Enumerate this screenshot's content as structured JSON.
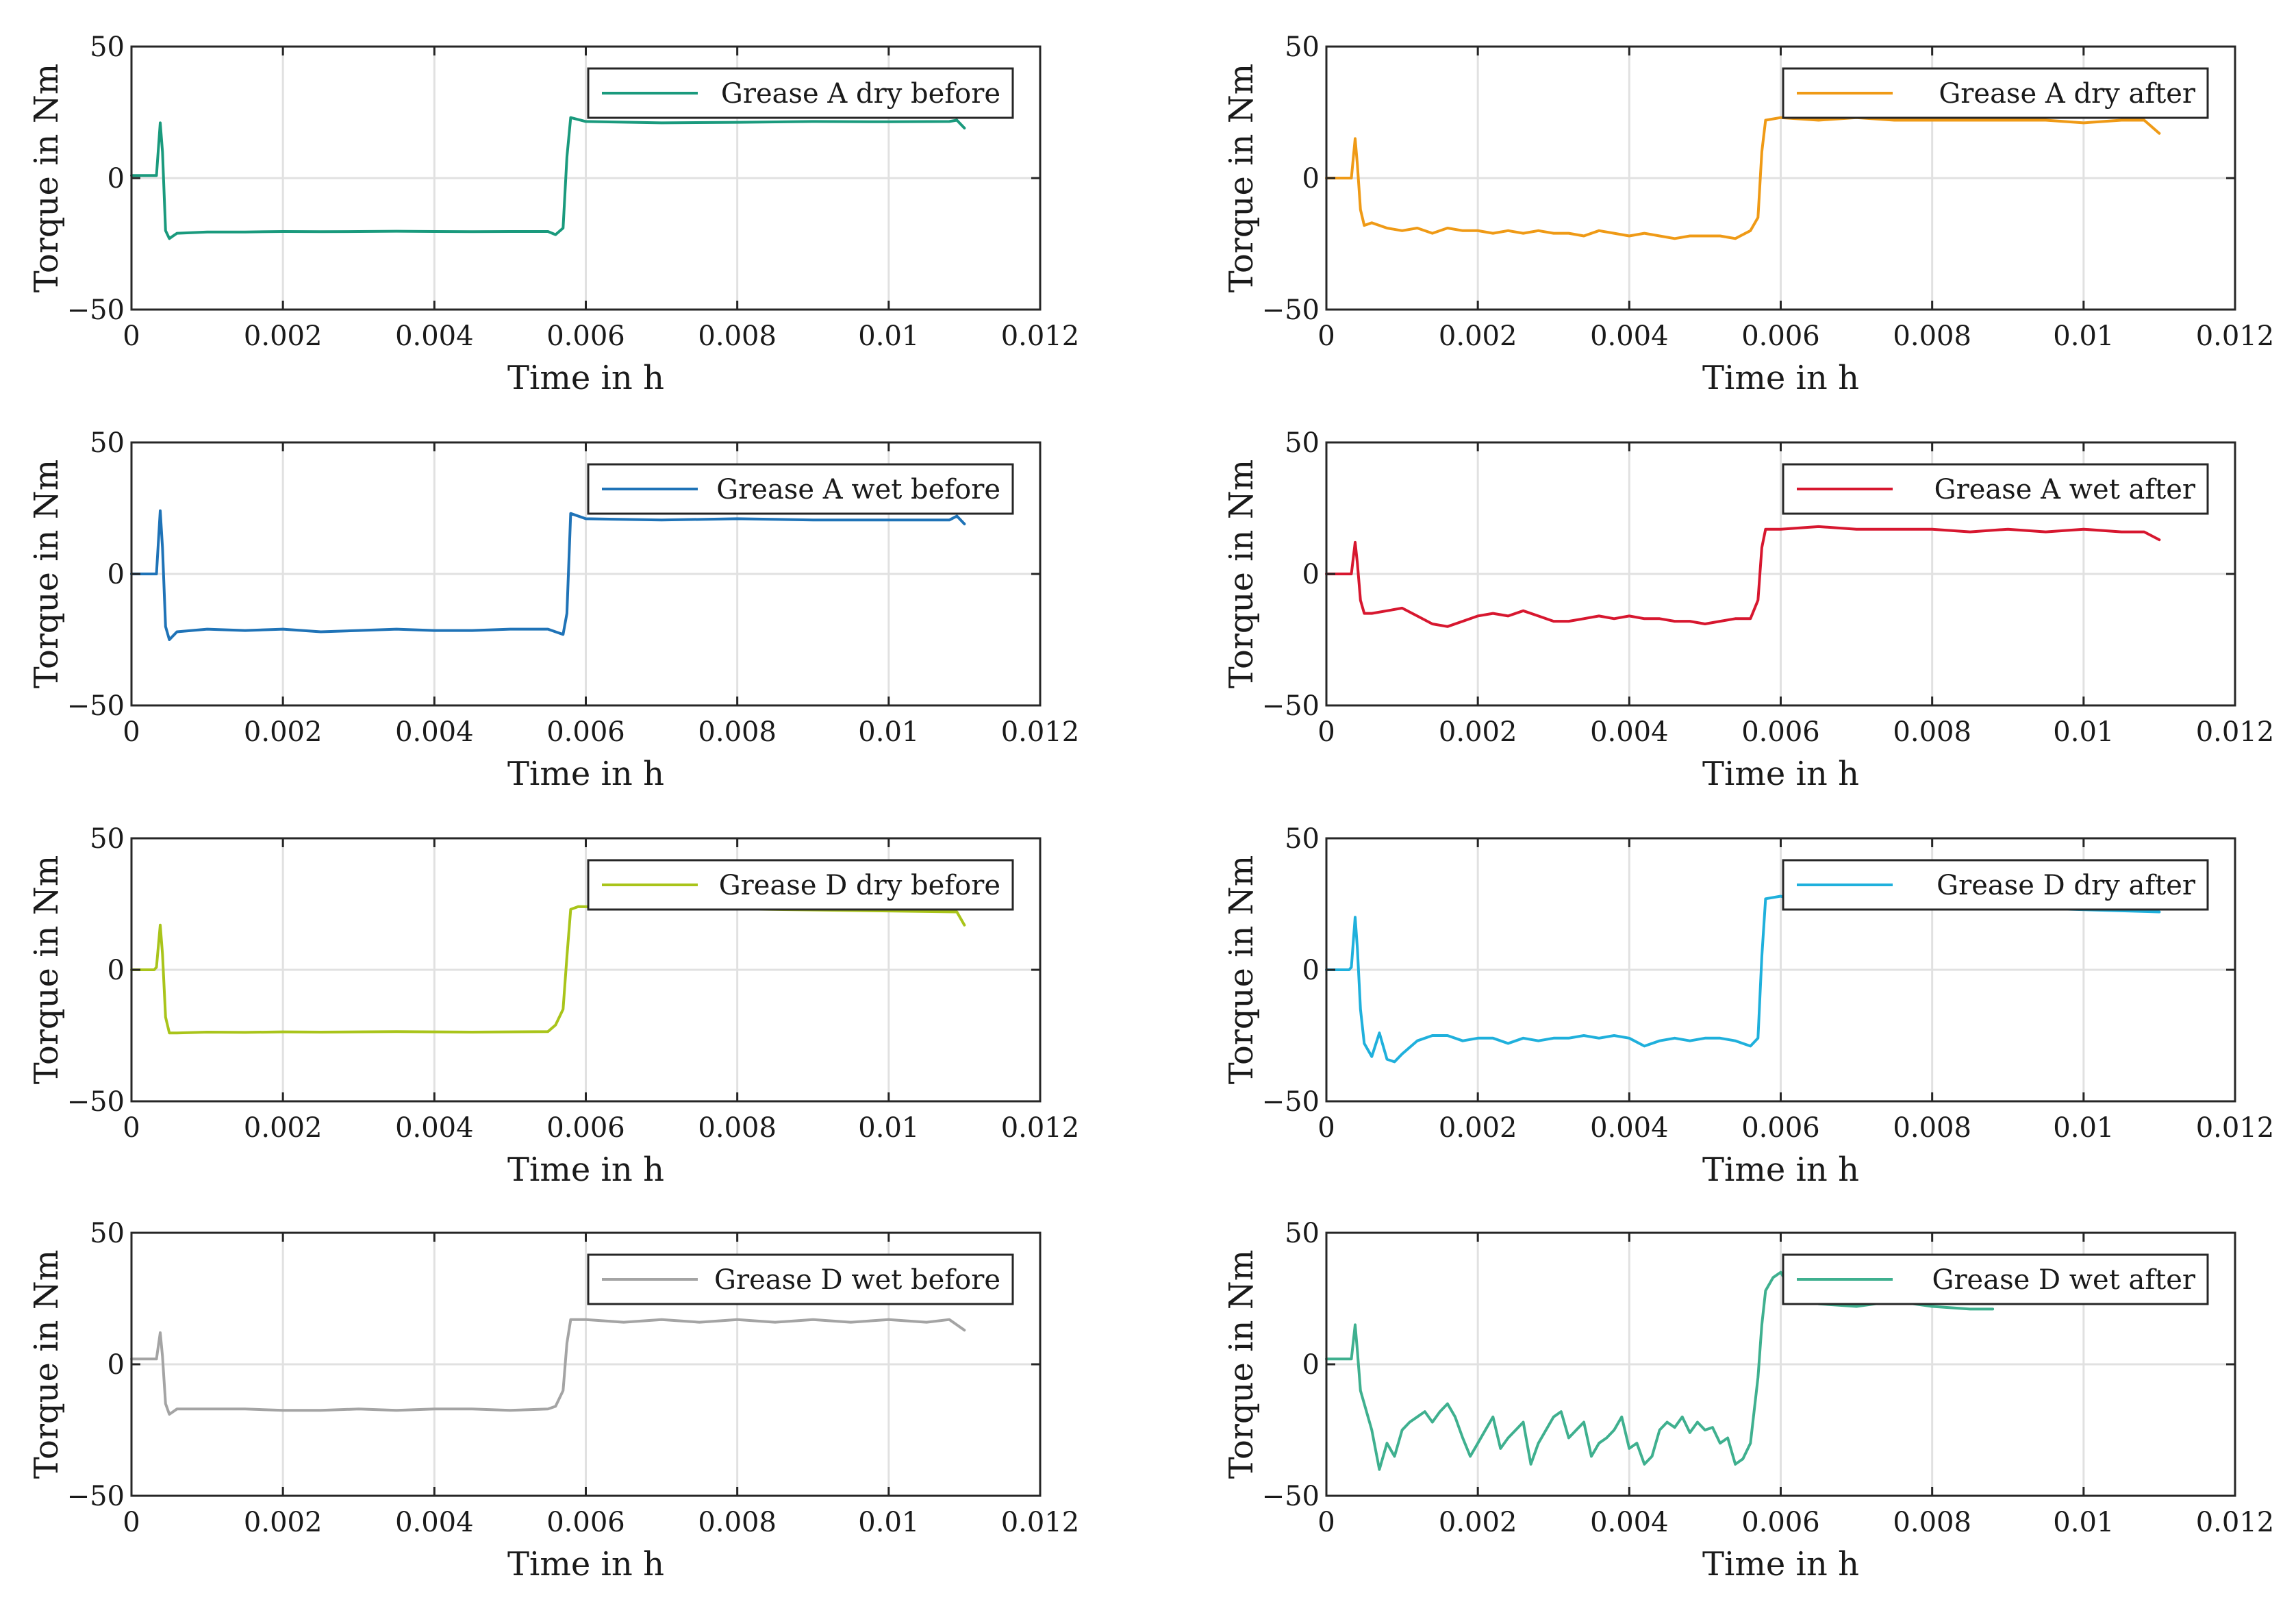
{
  "chart_data": [
    {
      "type": "line",
      "series": [
        {
          "name": "Grease A dry before",
          "color": "#1a9a7d",
          "x": [
            0,
            0.0003,
            0.00033,
            0.00038,
            0.00041,
            0.00045,
            0.0005,
            0.0006,
            0.001,
            0.0015,
            0.002,
            0.0025,
            0.003,
            0.0035,
            0.004,
            0.0045,
            0.005,
            0.0055,
            0.0056,
            0.0057,
            0.00575,
            0.0058,
            0.006,
            0.007,
            0.008,
            0.009,
            0.01,
            0.0108,
            0.0109,
            0.011
          ],
          "y": [
            1,
            1,
            1,
            21,
            10,
            -20,
            -23,
            -21,
            -20.5,
            -20.5,
            -20.3,
            -20.4,
            -20.3,
            -20.2,
            -20.3,
            -20.4,
            -20.3,
            -20.3,
            -21.5,
            -19,
            8,
            23,
            21.5,
            21,
            21.2,
            21.5,
            21.4,
            21.5,
            22,
            19
          ]
        }
      ],
      "title": "",
      "xlabel": "Time in h",
      "ylabel": "Torque in Nm",
      "xlim": [
        0,
        0.012
      ],
      "ylim": [
        -50,
        50
      ],
      "xticks": [
        "0",
        "0.002",
        "0.004",
        "0.006",
        "0.008",
        "0.01",
        "0.012"
      ],
      "yticks": [
        "-50",
        "0",
        "50"
      ],
      "grid": true,
      "legend_position": "top-right"
    },
    {
      "type": "line",
      "series": [
        {
          "name": "Grease A dry after",
          "color": "#ef9a16",
          "x": [
            0,
            0.0003,
            0.00033,
            0.00038,
            0.00041,
            0.00045,
            0.0005,
            0.0006,
            0.0008,
            0.001,
            0.0012,
            0.0014,
            0.0016,
            0.0018,
            0.002,
            0.0022,
            0.0024,
            0.0026,
            0.0028,
            0.003,
            0.0032,
            0.0034,
            0.0036,
            0.0038,
            0.004,
            0.0042,
            0.0044,
            0.0046,
            0.0048,
            0.005,
            0.0052,
            0.0054,
            0.0056,
            0.0057,
            0.00575,
            0.0058,
            0.006,
            0.0065,
            0.007,
            0.0075,
            0.008,
            0.0085,
            0.009,
            0.0095,
            0.01,
            0.0105,
            0.0108,
            0.011
          ],
          "y": [
            0,
            0,
            0,
            15,
            5,
            -12,
            -18,
            -17,
            -19,
            -20,
            -19,
            -21,
            -19,
            -20,
            -20,
            -21,
            -20,
            -21,
            -20,
            -21,
            -21,
            -22,
            -20,
            -21,
            -22,
            -21,
            -22,
            -23,
            -22,
            -22,
            -22,
            -23,
            -20,
            -15,
            10,
            22,
            23,
            22,
            23,
            22,
            22,
            22,
            22,
            22,
            21,
            22,
            22,
            17
          ]
        }
      ],
      "title": "",
      "xlabel": "Time in h",
      "ylabel": "Torque in Nm",
      "xlim": [
        0,
        0.012
      ],
      "ylim": [
        -50,
        50
      ],
      "xticks": [
        "0",
        "0.002",
        "0.004",
        "0.006",
        "0.008",
        "0.01",
        "0.012"
      ],
      "yticks": [
        "-50",
        "0",
        "50"
      ],
      "grid": true,
      "legend_position": "top-right"
    },
    {
      "type": "line",
      "series": [
        {
          "name": "Grease A wet before",
          "color": "#1f73b7",
          "x": [
            0,
            0.0003,
            0.00033,
            0.00038,
            0.00041,
            0.00045,
            0.0005,
            0.0006,
            0.001,
            0.0015,
            0.002,
            0.0025,
            0.003,
            0.0035,
            0.004,
            0.0045,
            0.005,
            0.0055,
            0.0056,
            0.0057,
            0.00575,
            0.0058,
            0.006,
            0.007,
            0.008,
            0.009,
            0.01,
            0.0108,
            0.0109,
            0.011
          ],
          "y": [
            0,
            0,
            0,
            24,
            10,
            -20,
            -25,
            -22,
            -21,
            -21.5,
            -21,
            -22,
            -21.5,
            -21,
            -21.5,
            -21.5,
            -21,
            -21,
            -22,
            -23,
            -15,
            23,
            21,
            20.5,
            21,
            20.5,
            20.5,
            20.5,
            22,
            19
          ]
        }
      ],
      "title": "",
      "xlabel": "Time in h",
      "ylabel": "Torque in Nm",
      "xlim": [
        0,
        0.012
      ],
      "ylim": [
        -50,
        50
      ],
      "xticks": [
        "0",
        "0.002",
        "0.004",
        "0.006",
        "0.008",
        "0.01",
        "0.012"
      ],
      "yticks": [
        "-50",
        "0",
        "50"
      ],
      "grid": true,
      "legend_position": "top-right"
    },
    {
      "type": "line",
      "series": [
        {
          "name": "Grease A wet after",
          "color": "#d7172f",
          "x": [
            0,
            0.0003,
            0.00033,
            0.00038,
            0.00041,
            0.00045,
            0.0005,
            0.0006,
            0.0008,
            0.001,
            0.0012,
            0.0014,
            0.0016,
            0.0018,
            0.002,
            0.0022,
            0.0024,
            0.0026,
            0.0028,
            0.003,
            0.0032,
            0.0034,
            0.0036,
            0.0038,
            0.004,
            0.0042,
            0.0044,
            0.0046,
            0.0048,
            0.005,
            0.0052,
            0.0054,
            0.0056,
            0.0057,
            0.00575,
            0.0058,
            0.006,
            0.0065,
            0.007,
            0.0075,
            0.008,
            0.0085,
            0.009,
            0.0095,
            0.01,
            0.0105,
            0.0108,
            0.011
          ],
          "y": [
            0,
            0,
            0,
            12,
            4,
            -10,
            -15,
            -15,
            -14,
            -13,
            -16,
            -19,
            -20,
            -18,
            -16,
            -15,
            -16,
            -14,
            -16,
            -18,
            -18,
            -17,
            -16,
            -17,
            -16,
            -17,
            -17,
            -18,
            -18,
            -19,
            -18,
            -17,
            -17,
            -10,
            10,
            17,
            17,
            18,
            17,
            17,
            17,
            16,
            17,
            16,
            17,
            16,
            16,
            13
          ]
        }
      ],
      "title": "",
      "xlabel": "Time in h",
      "ylabel": "Torque in Nm",
      "xlim": [
        0,
        0.012
      ],
      "ylim": [
        -50,
        50
      ],
      "xticks": [
        "0",
        "0.002",
        "0.004",
        "0.006",
        "0.008",
        "0.01",
        "0.012"
      ],
      "yticks": [
        "-50",
        "0",
        "50"
      ],
      "grid": true,
      "legend_position": "top-right"
    },
    {
      "type": "line",
      "series": [
        {
          "name": "Grease D dry before",
          "color": "#a9c41a",
          "x": [
            0,
            0.0003,
            0.00033,
            0.00038,
            0.00041,
            0.00045,
            0.0005,
            0.0006,
            0.001,
            0.0015,
            0.002,
            0.0025,
            0.003,
            0.0035,
            0.004,
            0.0045,
            0.005,
            0.0055,
            0.0056,
            0.0057,
            0.00575,
            0.0058,
            0.0059,
            0.0109,
            0.011
          ],
          "y": [
            0,
            0,
            1,
            17,
            6,
            -18,
            -24,
            -24,
            -23.7,
            -23.8,
            -23.6,
            -23.7,
            -23.6,
            -23.5,
            -23.6,
            -23.7,
            -23.6,
            -23.5,
            -21,
            -15,
            5,
            23,
            24,
            22,
            17
          ]
        }
      ],
      "title": "",
      "xlabel": "Time in h",
      "ylabel": "Torque in Nm",
      "xlim": [
        0,
        0.012
      ],
      "ylim": [
        -50,
        50
      ],
      "xticks": [
        "0",
        "0.002",
        "0.004",
        "0.006",
        "0.008",
        "0.01",
        "0.012"
      ],
      "yticks": [
        "-50",
        "0",
        "50"
      ],
      "grid": true,
      "legend_position": "top-right"
    },
    {
      "type": "line",
      "series": [
        {
          "name": "Grease D dry after",
          "color": "#1fb0dc",
          "x": [
            0,
            0.0003,
            0.00033,
            0.00038,
            0.00041,
            0.00045,
            0.0005,
            0.0006,
            0.0007,
            0.0008,
            0.0009,
            0.001,
            0.0012,
            0.0014,
            0.0016,
            0.0018,
            0.002,
            0.0022,
            0.0024,
            0.0026,
            0.0028,
            0.003,
            0.0032,
            0.0034,
            0.0036,
            0.0038,
            0.004,
            0.0042,
            0.0044,
            0.0046,
            0.0048,
            0.005,
            0.0052,
            0.0054,
            0.0056,
            0.0057,
            0.00575,
            0.0058,
            0.006,
            0.0062,
            0.0063,
            0.011
          ],
          "y": [
            0,
            0,
            1,
            20,
            8,
            -15,
            -28,
            -33,
            -24,
            -34,
            -35,
            -32,
            -27,
            -25,
            -25,
            -27,
            -26,
            -26,
            -28,
            -26,
            -27,
            -26,
            -26,
            -25,
            -26,
            -25,
            -26,
            -29,
            -27,
            -26,
            -27,
            -26,
            -26,
            -27,
            -29,
            -26,
            5,
            27,
            28,
            26,
            26,
            22
          ]
        }
      ],
      "title": "",
      "xlabel": "Time in h",
      "ylabel": "Torque in Nm",
      "xlim": [
        0,
        0.012
      ],
      "ylim": [
        -50,
        50
      ],
      "xticks": [
        "0",
        "0.002",
        "0.004",
        "0.006",
        "0.008",
        "0.01",
        "0.012"
      ],
      "yticks": [
        "-50",
        "0",
        "50"
      ],
      "grid": true,
      "legend_position": "top-right"
    },
    {
      "type": "line",
      "series": [
        {
          "name": "Grease D wet before",
          "color": "#a4a4a4",
          "x": [
            0,
            0.0003,
            0.00033,
            0.00038,
            0.00041,
            0.00045,
            0.0005,
            0.0006,
            0.001,
            0.0015,
            0.002,
            0.0025,
            0.003,
            0.0035,
            0.004,
            0.0045,
            0.005,
            0.0055,
            0.0056,
            0.0057,
            0.00575,
            0.0058,
            0.006,
            0.0065,
            0.007,
            0.0075,
            0.008,
            0.0085,
            0.009,
            0.0095,
            0.01,
            0.0105,
            0.0108,
            0.011
          ],
          "y": [
            2,
            2,
            2,
            12,
            3,
            -15,
            -19,
            -17,
            -17,
            -17,
            -17.5,
            -17.5,
            -17,
            -17.5,
            -17,
            -17,
            -17.5,
            -17,
            -16,
            -10,
            8,
            17,
            17,
            16,
            17,
            16,
            17,
            16,
            17,
            16,
            17,
            16,
            17,
            13
          ]
        }
      ],
      "title": "",
      "xlabel": "Time in h",
      "ylabel": "Torque in Nm",
      "xlim": [
        0,
        0.012
      ],
      "ylim": [
        -50,
        50
      ],
      "xticks": [
        "0",
        "0.002",
        "0.004",
        "0.006",
        "0.008",
        "0.01",
        "0.012"
      ],
      "yticks": [
        "-50",
        "0",
        "50"
      ],
      "grid": true,
      "legend_position": "top-right"
    },
    {
      "type": "line",
      "series": [
        {
          "name": "Grease D wet after",
          "color": "#3fb08f",
          "x": [
            0,
            0.0003,
            0.00033,
            0.00038,
            0.00041,
            0.00045,
            0.0005,
            0.0006,
            0.0007,
            0.0008,
            0.0009,
            0.001,
            0.0011,
            0.0012,
            0.0013,
            0.0014,
            0.0015,
            0.0016,
            0.0017,
            0.0018,
            0.0019,
            0.002,
            0.0021,
            0.0022,
            0.0023,
            0.0024,
            0.0025,
            0.0026,
            0.0027,
            0.0028,
            0.0029,
            0.003,
            0.0031,
            0.0032,
            0.0033,
            0.0034,
            0.0035,
            0.0036,
            0.0037,
            0.0038,
            0.0039,
            0.004,
            0.0041,
            0.0042,
            0.0043,
            0.0044,
            0.0045,
            0.0046,
            0.0047,
            0.0048,
            0.0049,
            0.005,
            0.0051,
            0.0052,
            0.0053,
            0.0054,
            0.0055,
            0.0056,
            0.0057,
            0.00575,
            0.0058,
            0.0059,
            0.006,
            0.0061,
            0.0062,
            0.0065,
            0.007,
            0.0075,
            0.008,
            0.0085,
            0.0088
          ],
          "y": [
            2,
            2,
            2,
            15,
            5,
            -10,
            -15,
            -25,
            -40,
            -30,
            -35,
            -25,
            -22,
            -20,
            -18,
            -22,
            -18,
            -15,
            -20,
            -28,
            -35,
            -30,
            -25,
            -20,
            -32,
            -28,
            -25,
            -22,
            -38,
            -30,
            -25,
            -20,
            -18,
            -28,
            -25,
            -22,
            -35,
            -30,
            -28,
            -25,
            -20,
            -32,
            -30,
            -38,
            -35,
            -25,
            -22,
            -24,
            -20,
            -26,
            -22,
            -25,
            -24,
            -30,
            -28,
            -38,
            -36,
            -30,
            -5,
            15,
            28,
            33,
            35,
            30,
            25,
            23,
            22,
            24,
            22,
            21,
            21
          ]
        }
      ],
      "title": "",
      "xlabel": "Time in h",
      "ylabel": "Torque in Nm",
      "xlim": [
        0,
        0.012
      ],
      "ylim": [
        -50,
        50
      ],
      "xticks": [
        "0",
        "0.002",
        "0.004",
        "0.006",
        "0.008",
        "0.01",
        "0.012"
      ],
      "yticks": [
        "-50",
        "0",
        "50"
      ],
      "grid": true,
      "legend_position": "top-right"
    }
  ]
}
